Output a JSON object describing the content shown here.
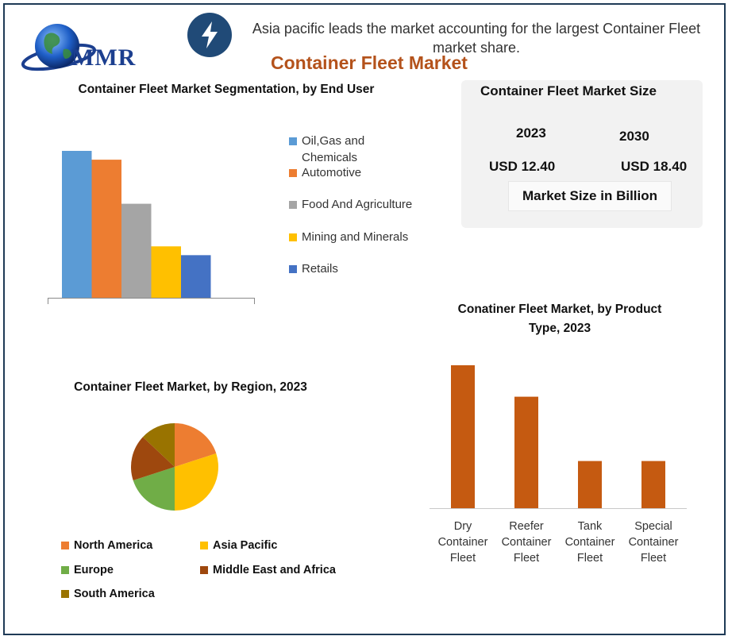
{
  "brand": {
    "logo_text": "MMR"
  },
  "header": {
    "headline": "Asia pacific leads the market accounting for the largest Container Fleet market share.",
    "title": "Container Fleet Market"
  },
  "market_size": {
    "title": "Container Fleet Market Size",
    "year_a": "2023",
    "value_a": "USD 12.40",
    "year_b": "2030",
    "value_b": "USD 18.40",
    "unit": "Market Size in Billion"
  },
  "colors": {
    "blue": "#5b9bd5",
    "orange": "#ed7d31",
    "gray": "#a5a5a5",
    "yellow": "#ffc000",
    "dark_blue": "#4472c4",
    "green": "#70ad47",
    "brown": "#9e480e",
    "olive": "#997300",
    "rust": "#c55a11",
    "navy": "#204a77"
  },
  "chart_data": [
    {
      "type": "bar",
      "title": "Container Fleet Market Segmentation, by End User",
      "categories": [
        "Oil,Gas and Chemicals",
        "Automotive",
        "Food And Agriculture",
        "Mining and Minerals",
        "Retails"
      ],
      "values": [
        100,
        94,
        64,
        35,
        29
      ],
      "colors": [
        "#5b9bd5",
        "#ed7d31",
        "#a5a5a5",
        "#ffc000",
        "#4472c4"
      ],
      "ylim": [
        0,
        100
      ],
      "legend": "right",
      "grid": false
    },
    {
      "type": "pie",
      "title": "Container Fleet Market, by Region, 2023",
      "labels": [
        "North America",
        "Asia Pacific",
        "Europe",
        "Middle East and Africa",
        "South America"
      ],
      "values": [
        20,
        30,
        20,
        17,
        13
      ],
      "colors": [
        "#ed7d31",
        "#ffc000",
        "#70ad47",
        "#9e480e",
        "#997300"
      ],
      "legend": "bottom"
    },
    {
      "type": "bar",
      "title": "Conatiner Fleet Market, by Product Type, 2023",
      "categories": [
        "Dry Container Fleet",
        "Reefer Container Fleet",
        "Tank Container Fleet",
        "Special Container Fleet"
      ],
      "category_lines": [
        [
          "Dry",
          "Container",
          "Fleet"
        ],
        [
          "Reefer",
          "Container",
          "Fleet"
        ],
        [
          "Tank",
          "Container",
          "Fleet"
        ],
        [
          "Special",
          "Container",
          "Fleet"
        ]
      ],
      "values": [
        100,
        78,
        33,
        33
      ],
      "ylim": [
        0,
        100
      ],
      "color": "#c55a11",
      "grid": false
    }
  ]
}
